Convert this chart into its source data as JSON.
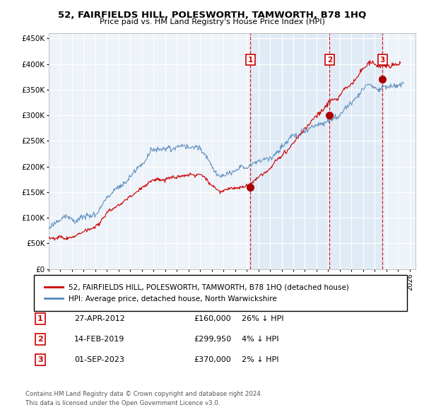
{
  "title": "52, FAIRFIELDS HILL, POLESWORTH, TAMWORTH, B78 1HQ",
  "subtitle": "Price paid vs. HM Land Registry's House Price Index (HPI)",
  "ylim": [
    0,
    460000
  ],
  "yticks": [
    0,
    50000,
    100000,
    150000,
    200000,
    250000,
    300000,
    350000,
    400000,
    450000
  ],
  "xlim_start": 1995.0,
  "xlim_end": 2026.5,
  "transactions": [
    {
      "id": 1,
      "date": 2012.32,
      "price": 160000,
      "label": "27-APR-2012",
      "price_str": "£160,000",
      "pct": "26%",
      "dir": "↓"
    },
    {
      "id": 2,
      "date": 2019.12,
      "price": 299950,
      "label": "14-FEB-2019",
      "price_str": "£299,950",
      "pct": "4%",
      "dir": "↓"
    },
    {
      "id": 3,
      "date": 2023.67,
      "price": 370000,
      "label": "01-SEP-2023",
      "price_str": "£370,000",
      "pct": "2%",
      "dir": "↓"
    }
  ],
  "red_line_color": "#cc0000",
  "blue_line_color": "#5588bb",
  "fill_color": "#dce8f5",
  "dot_color": "#aa0000",
  "vline_color": "#cc0000",
  "background_color": "#edf3f9",
  "grid_color": "#ffffff",
  "legend_label_red": "52, FAIRFIELDS HILL, POLESWORTH, TAMWORTH, B78 1HQ (detached house)",
  "legend_label_blue": "HPI: Average price, detached house, North Warwickshire",
  "footer1": "Contains HM Land Registry data © Crown copyright and database right 2024.",
  "footer2": "This data is licensed under the Open Government Licence v3.0."
}
